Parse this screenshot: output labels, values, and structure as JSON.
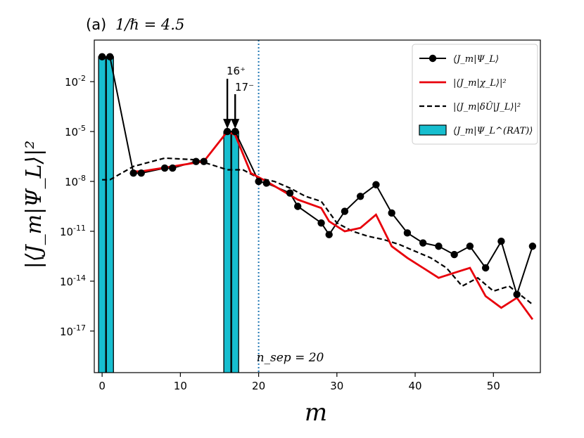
{
  "chart_data": {
    "type": "line",
    "panel_label": "(a)",
    "title": "1/ℏ = 4.5",
    "xlabel": "m",
    "ylabel": "|⟨J_m|Ψ_L⟩|²",
    "yscale": "log",
    "xlim": [
      -1,
      56
    ],
    "ylim_log10": [
      -19.5,
      0.5
    ],
    "x_ticks": [
      0,
      10,
      20,
      30,
      40,
      50
    ],
    "y_ticks": [
      {
        "exp": -2,
        "base": "10",
        "sup": "-2"
      },
      {
        "exp": -5,
        "base": "10",
        "sup": "-5"
      },
      {
        "exp": -8,
        "base": "10",
        "sup": "-8"
      },
      {
        "exp": -11,
        "base": "10",
        "sup": "-11"
      },
      {
        "exp": -14,
        "base": "10",
        "sup": "-14"
      },
      {
        "exp": -17,
        "base": "10",
        "sup": "-17"
      }
    ],
    "legend_position": "upper right",
    "legend": [
      {
        "label": "⟨J_m|Ψ_L⟩",
        "style": "black-line-dots"
      },
      {
        "label": "|⟨J_m|χ_L⟩|²",
        "style": "red-line"
      },
      {
        "label": "|⟨J_m|δÛ|J_L⟩|²",
        "style": "black-dashed"
      },
      {
        "label": "⟨J_m|Ψ_L^(RAT)⟩",
        "style": "cyan-bar"
      }
    ],
    "annotations": {
      "arrow1_label": "16⁺",
      "arrow1_x": 16,
      "arrow2_label": "17⁻",
      "arrow2_x": 17,
      "vline_x": 20,
      "vline_label": "n_sep = 20"
    },
    "colors": {
      "dots": "#000000",
      "red": "#e8000b",
      "dashed": "#000000",
      "bar": "#17becf",
      "vline": "#1f77b4"
    },
    "series": [
      {
        "name": "⟨J_m|Ψ_L⟩",
        "x": [
          0,
          1,
          4,
          5,
          8,
          9,
          12,
          13,
          16,
          17,
          20,
          21,
          24,
          25,
          28,
          29,
          31,
          33,
          35,
          37,
          39,
          41,
          43,
          45,
          47,
          49,
          51,
          53,
          55
        ],
        "log10y": [
          -0.5,
          -0.5,
          -7.5,
          -7.5,
          -7.2,
          -7.2,
          -6.8,
          -6.8,
          -5.0,
          -5.0,
          -8.0,
          -8.1,
          -8.7,
          -9.5,
          -10.5,
          -11.2,
          -9.8,
          -8.9,
          -8.2,
          -9.9,
          -11.1,
          -11.7,
          -11.9,
          -12.4,
          -11.9,
          -13.2,
          -11.6,
          -14.8,
          -11.9
        ]
      },
      {
        "name": "|⟨J_m|χ_L⟩|²",
        "x": [
          4,
          5,
          9,
          13,
          16,
          17,
          19,
          21,
          25,
          28,
          29,
          31,
          33,
          35,
          37,
          39,
          41,
          43,
          45,
          47,
          49,
          51,
          53,
          55
        ],
        "log10y": [
          -7.4,
          -7.4,
          -7.1,
          -6.8,
          -5.0,
          -5.2,
          -7.5,
          -8.0,
          -9.1,
          -9.6,
          -10.4,
          -11.0,
          -10.8,
          -10.0,
          -11.9,
          -12.6,
          -13.2,
          -13.8,
          -13.5,
          -13.2,
          -14.9,
          -15.6,
          -15.0,
          -16.3
        ]
      },
      {
        "name": "|⟨J_m|δÛ|J_L⟩|²",
        "x": [
          0,
          1,
          4,
          8,
          12,
          16,
          18,
          20,
          22,
          24,
          26,
          28,
          30,
          32,
          34,
          36,
          38,
          40,
          42,
          44,
          46,
          48,
          50,
          52,
          55
        ],
        "log10y": [
          -7.9,
          -7.9,
          -7.1,
          -6.6,
          -6.7,
          -7.3,
          -7.3,
          -7.8,
          -8.0,
          -8.4,
          -8.9,
          -9.2,
          -10.5,
          -11.0,
          -11.3,
          -11.5,
          -11.8,
          -12.2,
          -12.6,
          -13.2,
          -14.3,
          -13.8,
          -14.6,
          -14.3,
          -15.4
        ]
      },
      {
        "name": "⟨J_m|Ψ_L^(RAT)⟩",
        "type": "bar",
        "x": [
          0,
          1,
          16,
          17
        ],
        "log10y": [
          -0.5,
          -0.5,
          -5.0,
          -5.0
        ]
      }
    ]
  }
}
